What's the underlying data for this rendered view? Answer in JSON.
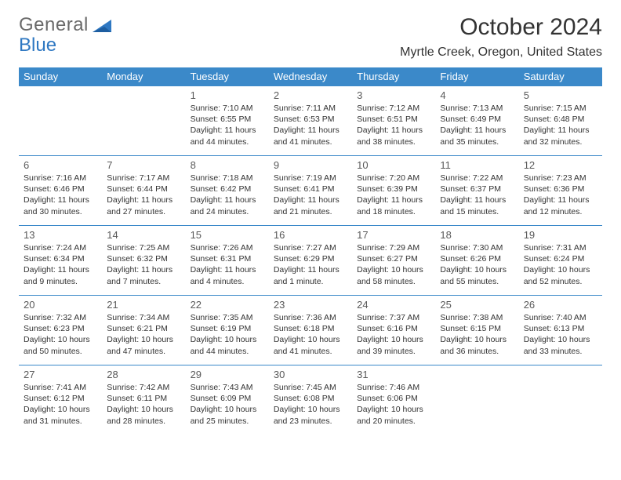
{
  "logo": {
    "word1": "General",
    "word2": "Blue"
  },
  "header": {
    "month_title": "October 2024",
    "location": "Myrtle Creek, Oregon, United States"
  },
  "colors": {
    "header_bg": "#3b89c9",
    "header_text": "#ffffff",
    "row_border": "#3b89c9",
    "logo_gray": "#6a6a6a",
    "logo_blue": "#2f78c2",
    "text": "#333333",
    "daynum": "#5a5a5a",
    "background": "#ffffff"
  },
  "day_headers": [
    "Sunday",
    "Monday",
    "Tuesday",
    "Wednesday",
    "Thursday",
    "Friday",
    "Saturday"
  ],
  "weeks": [
    [
      null,
      null,
      {
        "n": "1",
        "sunrise": "7:10 AM",
        "sunset": "6:55 PM",
        "dl": "11 hours and 44 minutes."
      },
      {
        "n": "2",
        "sunrise": "7:11 AM",
        "sunset": "6:53 PM",
        "dl": "11 hours and 41 minutes."
      },
      {
        "n": "3",
        "sunrise": "7:12 AM",
        "sunset": "6:51 PM",
        "dl": "11 hours and 38 minutes."
      },
      {
        "n": "4",
        "sunrise": "7:13 AM",
        "sunset": "6:49 PM",
        "dl": "11 hours and 35 minutes."
      },
      {
        "n": "5",
        "sunrise": "7:15 AM",
        "sunset": "6:48 PM",
        "dl": "11 hours and 32 minutes."
      }
    ],
    [
      {
        "n": "6",
        "sunrise": "7:16 AM",
        "sunset": "6:46 PM",
        "dl": "11 hours and 30 minutes."
      },
      {
        "n": "7",
        "sunrise": "7:17 AM",
        "sunset": "6:44 PM",
        "dl": "11 hours and 27 minutes."
      },
      {
        "n": "8",
        "sunrise": "7:18 AM",
        "sunset": "6:42 PM",
        "dl": "11 hours and 24 minutes."
      },
      {
        "n": "9",
        "sunrise": "7:19 AM",
        "sunset": "6:41 PM",
        "dl": "11 hours and 21 minutes."
      },
      {
        "n": "10",
        "sunrise": "7:20 AM",
        "sunset": "6:39 PM",
        "dl": "11 hours and 18 minutes."
      },
      {
        "n": "11",
        "sunrise": "7:22 AM",
        "sunset": "6:37 PM",
        "dl": "11 hours and 15 minutes."
      },
      {
        "n": "12",
        "sunrise": "7:23 AM",
        "sunset": "6:36 PM",
        "dl": "11 hours and 12 minutes."
      }
    ],
    [
      {
        "n": "13",
        "sunrise": "7:24 AM",
        "sunset": "6:34 PM",
        "dl": "11 hours and 9 minutes."
      },
      {
        "n": "14",
        "sunrise": "7:25 AM",
        "sunset": "6:32 PM",
        "dl": "11 hours and 7 minutes."
      },
      {
        "n": "15",
        "sunrise": "7:26 AM",
        "sunset": "6:31 PM",
        "dl": "11 hours and 4 minutes."
      },
      {
        "n": "16",
        "sunrise": "7:27 AM",
        "sunset": "6:29 PM",
        "dl": "11 hours and 1 minute."
      },
      {
        "n": "17",
        "sunrise": "7:29 AM",
        "sunset": "6:27 PM",
        "dl": "10 hours and 58 minutes."
      },
      {
        "n": "18",
        "sunrise": "7:30 AM",
        "sunset": "6:26 PM",
        "dl": "10 hours and 55 minutes."
      },
      {
        "n": "19",
        "sunrise": "7:31 AM",
        "sunset": "6:24 PM",
        "dl": "10 hours and 52 minutes."
      }
    ],
    [
      {
        "n": "20",
        "sunrise": "7:32 AM",
        "sunset": "6:23 PM",
        "dl": "10 hours and 50 minutes."
      },
      {
        "n": "21",
        "sunrise": "7:34 AM",
        "sunset": "6:21 PM",
        "dl": "10 hours and 47 minutes."
      },
      {
        "n": "22",
        "sunrise": "7:35 AM",
        "sunset": "6:19 PM",
        "dl": "10 hours and 44 minutes."
      },
      {
        "n": "23",
        "sunrise": "7:36 AM",
        "sunset": "6:18 PM",
        "dl": "10 hours and 41 minutes."
      },
      {
        "n": "24",
        "sunrise": "7:37 AM",
        "sunset": "6:16 PM",
        "dl": "10 hours and 39 minutes."
      },
      {
        "n": "25",
        "sunrise": "7:38 AM",
        "sunset": "6:15 PM",
        "dl": "10 hours and 36 minutes."
      },
      {
        "n": "26",
        "sunrise": "7:40 AM",
        "sunset": "6:13 PM",
        "dl": "10 hours and 33 minutes."
      }
    ],
    [
      {
        "n": "27",
        "sunrise": "7:41 AM",
        "sunset": "6:12 PM",
        "dl": "10 hours and 31 minutes."
      },
      {
        "n": "28",
        "sunrise": "7:42 AM",
        "sunset": "6:11 PM",
        "dl": "10 hours and 28 minutes."
      },
      {
        "n": "29",
        "sunrise": "7:43 AM",
        "sunset": "6:09 PM",
        "dl": "10 hours and 25 minutes."
      },
      {
        "n": "30",
        "sunrise": "7:45 AM",
        "sunset": "6:08 PM",
        "dl": "10 hours and 23 minutes."
      },
      {
        "n": "31",
        "sunrise": "7:46 AM",
        "sunset": "6:06 PM",
        "dl": "10 hours and 20 minutes."
      },
      null,
      null
    ]
  ],
  "labels": {
    "sunrise": "Sunrise: ",
    "sunset": "Sunset: ",
    "daylight": "Daylight: "
  }
}
